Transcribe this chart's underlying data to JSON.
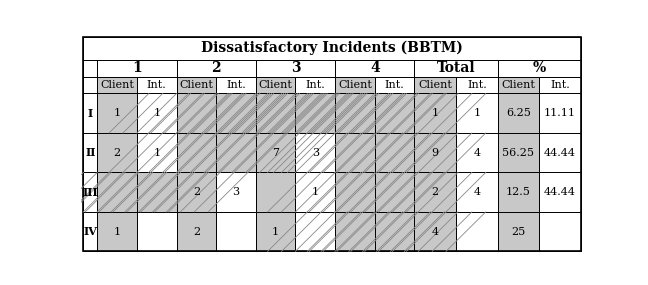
{
  "title": "Dissatisfactory Incidents (BBTM)",
  "col_groups": [
    "1",
    "2",
    "3",
    "4",
    "Total",
    "%"
  ],
  "row_labels": [
    "I",
    "II",
    "III",
    "IV"
  ],
  "cell_data": [
    [
      "1",
      "1",
      "",
      "",
      "",
      "",
      "",
      "",
      "1",
      "1",
      "6.25",
      "11.11"
    ],
    [
      "2",
      "1",
      "",
      "",
      "7",
      "3",
      "",
      "",
      "9",
      "4",
      "56.25",
      "44.44"
    ],
    [
      "",
      "",
      "2",
      "3",
      "",
      "1",
      "",
      "",
      "2",
      "4",
      "12.5",
      "44.44"
    ],
    [
      "1",
      "",
      "2",
      "",
      "1",
      "",
      "",
      "",
      "4",
      "",
      "25",
      ""
    ]
  ],
  "hatched_cells": [
    [
      2,
      3,
      4,
      5,
      6,
      7
    ],
    [
      2,
      3,
      6,
      7
    ],
    [
      0,
      1,
      6,
      7
    ],
    [
      6,
      7
    ]
  ],
  "cell_gray": "#c8c8c8",
  "title_fontsize": 10,
  "cell_fontsize": 8,
  "group_fontsize": 9
}
